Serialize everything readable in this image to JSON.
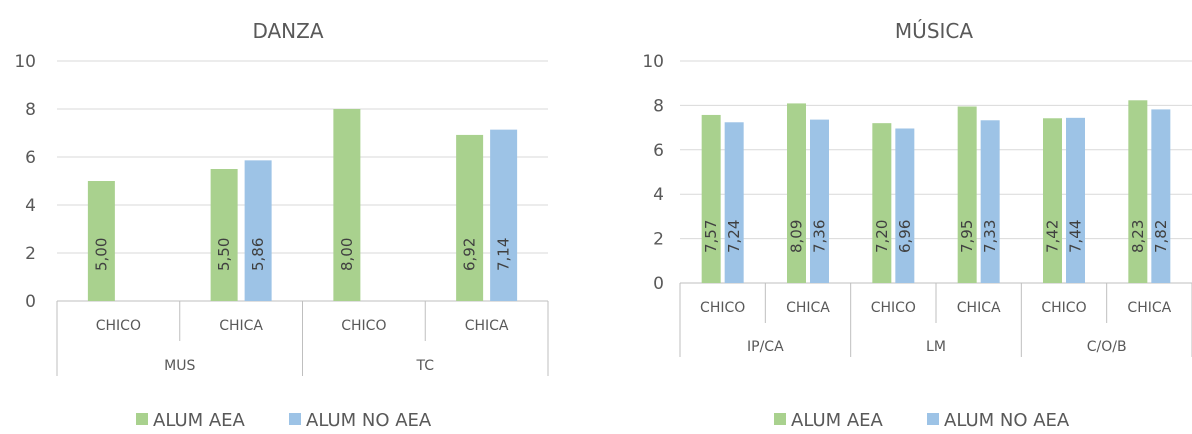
{
  "chart_data": [
    {
      "type": "bar",
      "title": "DANZA",
      "ylim": [
        0,
        10
      ],
      "yticks": [
        0,
        2,
        4,
        6,
        8,
        10
      ],
      "categories": [
        "CHICO",
        "CHICA",
        "CHICO",
        "CHICA"
      ],
      "groups": [
        {
          "label": "MUS",
          "span": 2
        },
        {
          "label": "TC",
          "span": 2
        }
      ],
      "series": [
        {
          "name": "ALUM AEA",
          "color": "#a9d18e",
          "values": [
            5.0,
            5.5,
            8.0,
            6.92
          ],
          "labels": [
            "5,00",
            "5,50",
            "8,00",
            "6,92"
          ]
        },
        {
          "name": "ALUM NO AEA",
          "color": "#9dc3e6",
          "values": [
            null,
            5.86,
            null,
            7.14
          ],
          "labels": [
            "",
            "5,86",
            "",
            "7,14"
          ]
        }
      ],
      "grid": true,
      "legend": "bottom"
    },
    {
      "type": "bar",
      "title": "MÚSICA",
      "ylim": [
        0,
        10
      ],
      "yticks": [
        0,
        2,
        4,
        6,
        8,
        10
      ],
      "categories": [
        "CHICO",
        "CHICA",
        "CHICO",
        "CHICA",
        "CHICO",
        "CHICA"
      ],
      "groups": [
        {
          "label": "IP/CA",
          "span": 2
        },
        {
          "label": "LM",
          "span": 2
        },
        {
          "label": "C/O/B",
          "span": 2
        }
      ],
      "series": [
        {
          "name": "ALUM AEA",
          "color": "#a9d18e",
          "values": [
            7.57,
            8.09,
            7.2,
            7.95,
            7.42,
            8.23
          ],
          "labels": [
            "7,57",
            "8,09",
            "7,20",
            "7,95",
            "7,42",
            "8,23"
          ]
        },
        {
          "name": "ALUM NO AEA",
          "color": "#9dc3e6",
          "values": [
            7.24,
            7.36,
            6.96,
            7.33,
            7.44,
            7.82
          ],
          "labels": [
            "7,24",
            "7,36",
            "6,96",
            "7,33",
            "7,44",
            "7,82"
          ]
        }
      ],
      "grid": true,
      "legend": "bottom"
    }
  ]
}
